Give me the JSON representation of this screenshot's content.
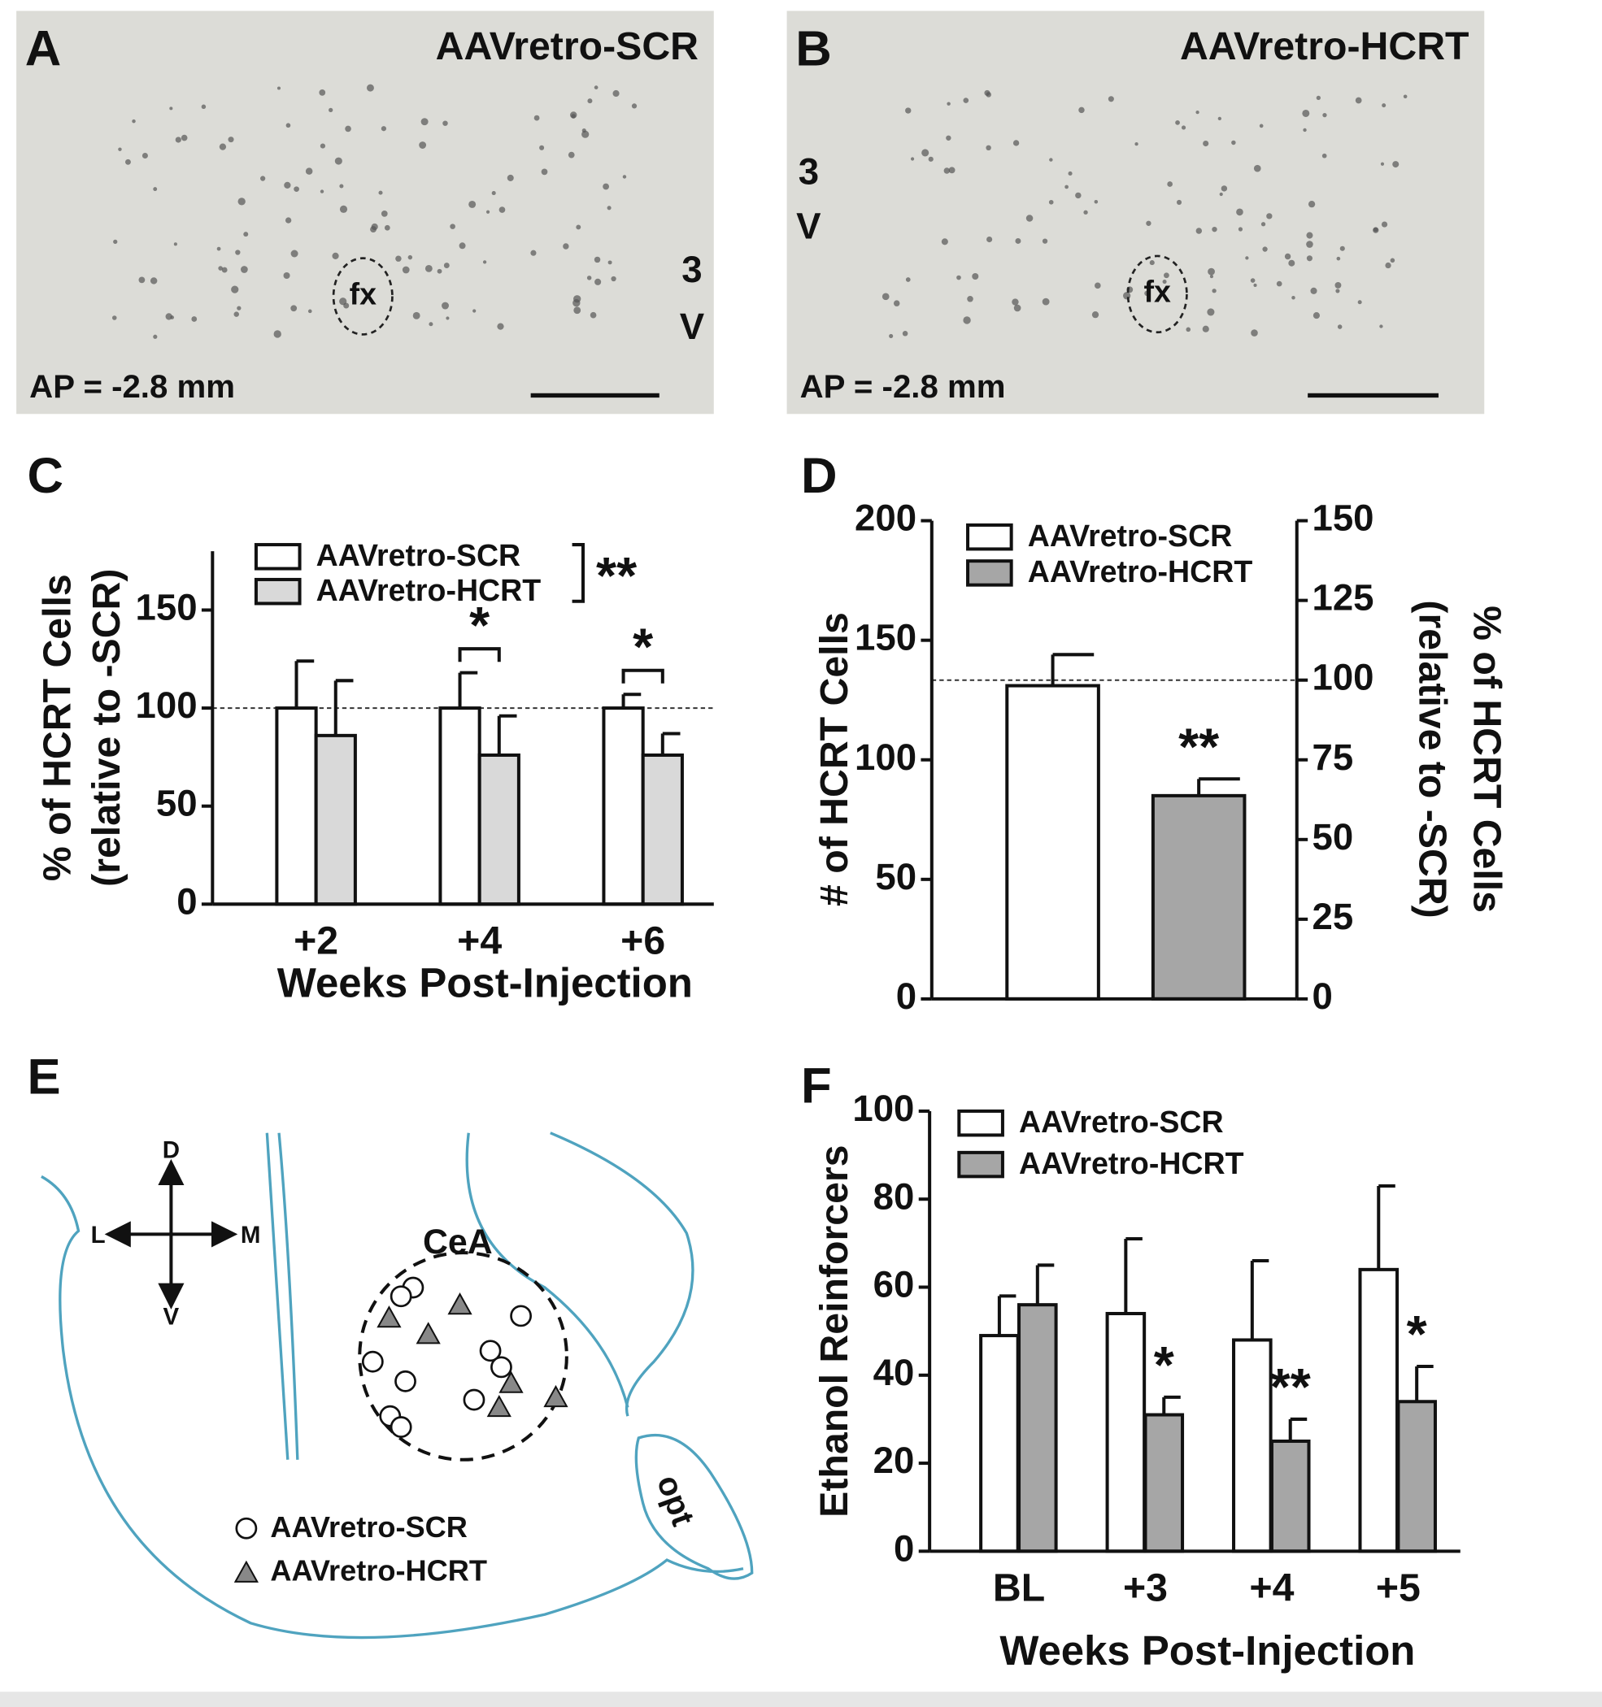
{
  "panels": [
    {
      "label": "A",
      "title": "AAVretro-SCR",
      "landmark": "fx",
      "ventricle": [
        "3",
        "V"
      ],
      "coordinate": "AP = -2.8 mm"
    },
    {
      "label": "B",
      "title": "AAVretro-HCRT",
      "landmark": "fx",
      "ventricle": [
        "3",
        "V"
      ],
      "coordinate": "AP = -2.8 mm"
    }
  ],
  "diagram": {
    "label": "E",
    "directions": [
      "D",
      "V",
      "L",
      "M"
    ],
    "region": "CeA",
    "structure": "opt",
    "legend": [
      "AAVretro-SCR",
      "AAVretro-HCRT"
    ]
  },
  "chart_data": [
    {
      "type": "bar",
      "label": "C",
      "ylabel": [
        "% of HCRT Cells",
        "(relative to -SCR)"
      ],
      "xlabel": "Weeks Post-Injection",
      "categories": [
        "+2",
        "+4",
        "+6"
      ],
      "series": [
        {
          "name": "AAVretro-SCR",
          "color": "#ffffff",
          "values": [
            100,
            100,
            100
          ],
          "errors": [
            24,
            18,
            7
          ]
        },
        {
          "name": "AAVretro-HCRT",
          "color": "#d9d9d9",
          "values": [
            86,
            76,
            76
          ],
          "errors": [
            28,
            20,
            11
          ]
        }
      ],
      "ylim": [
        0,
        180
      ],
      "yticks": [
        0,
        50,
        100,
        150
      ],
      "reference_line": {
        "value": 100
      },
      "significance": [
        null,
        "*",
        "*"
      ],
      "legend_significance": "**"
    },
    {
      "type": "bar",
      "label": "D",
      "ylabel": [
        "# of HCRT Cells"
      ],
      "y2label": [
        "% of HCRT Cells",
        "(relative to -SCR)"
      ],
      "categories": [
        null,
        null
      ],
      "series": [
        {
          "name": "AAVretro-SCR",
          "color": "#ffffff",
          "values": [
            131,
            null
          ],
          "errors": [
            13,
            null
          ]
        },
        {
          "name": "AAVretro-HCRT",
          "color": "#a6a6a6",
          "values": [
            null,
            85
          ],
          "errors": [
            null,
            7
          ],
          "significance": [
            null,
            "**"
          ]
        }
      ],
      "ylim": [
        0,
        200
      ],
      "yticks": [
        0,
        50,
        100,
        150,
        200
      ],
      "y2lim": [
        0,
        150
      ],
      "y2ticks": [
        0,
        25,
        50,
        75,
        100,
        125,
        150
      ],
      "reference_line": {
        "value": 100,
        "axis": "y2"
      }
    },
    {
      "type": "bar",
      "label": "F",
      "ylabel": [
        "Ethanol Reinforcers"
      ],
      "xlabel": "Weeks Post-Injection",
      "categories": [
        "BL",
        "+3",
        "+4",
        "+5"
      ],
      "series": [
        {
          "name": "AAVretro-SCR",
          "color": "#ffffff",
          "values": [
            49,
            54,
            48,
            64
          ],
          "errors": [
            9,
            17,
            18,
            19
          ]
        },
        {
          "name": "AAVretro-HCRT",
          "color": "#a6a6a6",
          "values": [
            56,
            31,
            25,
            34
          ],
          "errors": [
            9,
            4,
            5,
            8
          ],
          "significance": [
            null,
            "*",
            "**",
            "*"
          ]
        }
      ],
      "ylim": [
        0,
        100
      ],
      "yticks": [
        0,
        20,
        40,
        60,
        80,
        100
      ]
    }
  ]
}
